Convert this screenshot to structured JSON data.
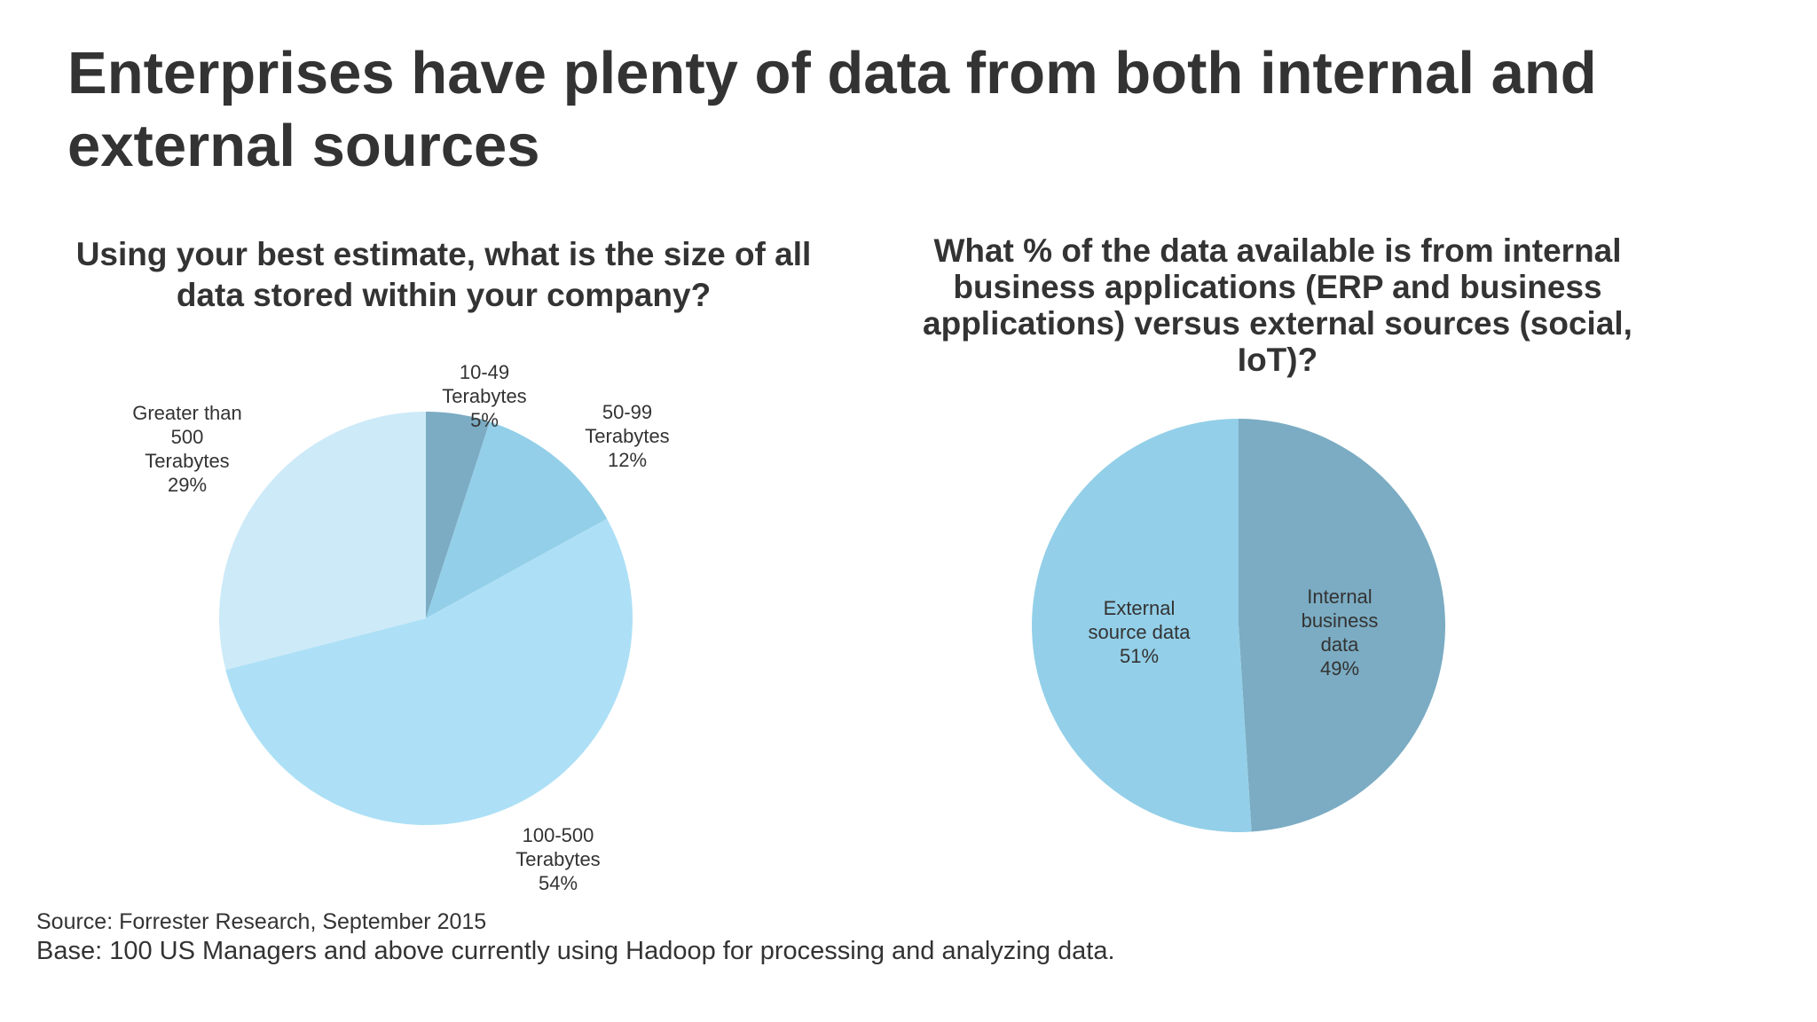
{
  "title": "Enterprises have plenty of data from both internal and external sources",
  "chart_data": [
    {
      "type": "pie",
      "title": "Using your best estimate, what is the size of all data stored within your company?",
      "slices": [
        {
          "label_lines": [
            "10-49",
            "Terabytes",
            "5%"
          ],
          "value": 5,
          "color": "#7bacc3"
        },
        {
          "label_lines": [
            "50-99",
            "Terabytes",
            "12%"
          ],
          "value": 12,
          "color": "#93cfe8"
        },
        {
          "label_lines": [
            "100-500",
            "Terabytes",
            "54%"
          ],
          "value": 54,
          "color": "#ade0f6"
        },
        {
          "label_lines": [
            "Greater than",
            "500",
            "Terabytes",
            "29%"
          ],
          "value": 29,
          "color": "#cdeaf8"
        }
      ]
    },
    {
      "type": "pie",
      "title": "What % of the data available is from internal business applications (ERP and business applications) versus external sources (social, IoT)?",
      "slices": [
        {
          "label_lines": [
            "Internal",
            "business",
            "data",
            "49%"
          ],
          "value": 49,
          "color": "#7bacc3"
        },
        {
          "label_lines": [
            "External",
            "source data",
            "51%"
          ],
          "value": 51,
          "color": "#93cfe8"
        }
      ]
    }
  ],
  "footer": {
    "source": "Source: Forrester Research, September 2015",
    "base": "Base: 100 US Managers and above currently using Hadoop for processing and analyzing data."
  }
}
